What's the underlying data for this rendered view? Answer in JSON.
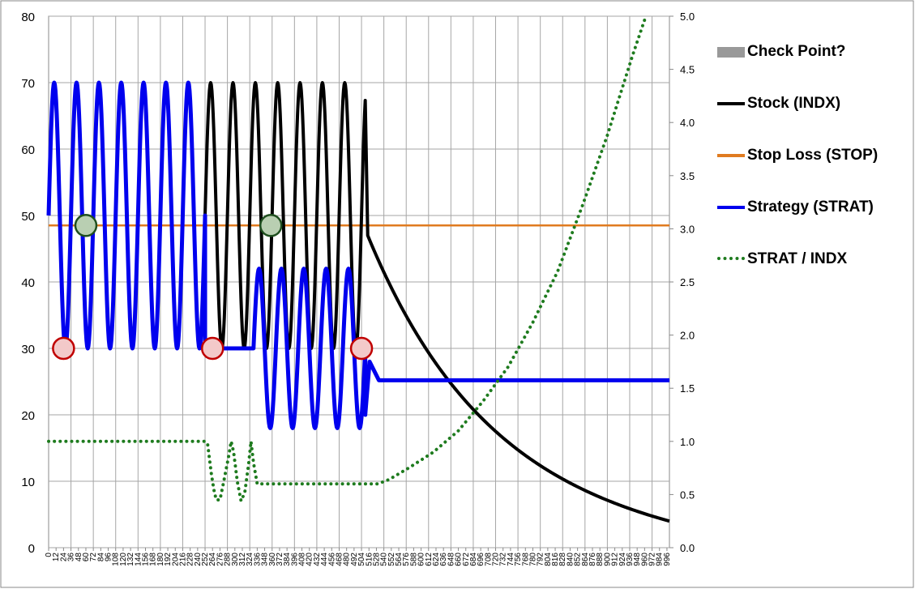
{
  "chart_data": {
    "type": "line",
    "title": "",
    "xlabel": "",
    "ylabel": "",
    "y2label": "",
    "xlim": [
      0,
      1000
    ],
    "ylim": [
      0,
      80
    ],
    "y2lim": [
      0,
      5
    ],
    "x_tick_step": 12,
    "y_ticks": [
      0,
      10,
      20,
      30,
      40,
      50,
      60,
      70,
      80
    ],
    "y2_ticks": [
      "0.0",
      "0.5",
      "1.0",
      "1.5",
      "2.0",
      "2.5",
      "3.0",
      "3.5",
      "4.0",
      "4.5",
      "5.0"
    ],
    "grid": true,
    "legend_position": "right",
    "series": [
      {
        "name": "Check Point?",
        "kind": "markers",
        "color": "#999999",
        "points": [
          {
            "x": 60,
            "y": 48.5,
            "style": "green"
          },
          {
            "x": 358,
            "y": 48.5,
            "style": "green"
          },
          {
            "x": 24,
            "y": 30,
            "style": "red"
          },
          {
            "x": 264,
            "y": 30,
            "style": "red"
          },
          {
            "x": 504,
            "y": 30,
            "style": "red"
          }
        ]
      },
      {
        "name": "Stock (INDX)",
        "color": "#000000",
        "axis": "left",
        "description": "oscillates 30-70 with period 36 until x=510, then decays from 47 to 4 by x=1000",
        "oscillation": {
          "x0": 0,
          "x1": 510,
          "min": 30,
          "max": 70,
          "start": 50,
          "period": 36
        },
        "decay": {
          "x0": 514,
          "x1": 1000,
          "y0": 47,
          "y1": 4,
          "rate": 0.0051
        }
      },
      {
        "name": "Stop Loss (STOP)",
        "color": "#E07B20",
        "axis": "left",
        "x": [
          0,
          1000
        ],
        "values": [
          48.5,
          48.5
        ]
      },
      {
        "name": "Strategy (STRAT)",
        "color": "#0000EE",
        "axis": "left",
        "segments": [
          {
            "kind": "osc",
            "x0": 0,
            "x1": 252,
            "min": 30,
            "max": 70,
            "start": 50,
            "period": 36
          },
          {
            "kind": "flat",
            "x0": 252,
            "x1": 330,
            "y": 30
          },
          {
            "kind": "osc",
            "x0": 330,
            "x1": 510,
            "min": 18,
            "max": 42,
            "start": 30,
            "period": 36
          },
          {
            "kind": "line",
            "points": [
              [
                510,
                20
              ],
              [
                517,
                28
              ],
              [
                532,
                25.2
              ]
            ]
          },
          {
            "kind": "flat",
            "x0": 532,
            "x1": 1000,
            "y": 25.2
          }
        ]
      },
      {
        "name": "STRAT / INDX",
        "color": "#1E7B1E",
        "axis": "right",
        "points": [
          [
            0,
            1.0
          ],
          [
            252,
            1.0
          ],
          [
            256,
            0.98
          ],
          [
            262,
            0.7
          ],
          [
            266,
            0.55
          ],
          [
            270,
            0.45
          ],
          [
            276,
            0.45
          ],
          [
            282,
            0.62
          ],
          [
            290,
            0.86
          ],
          [
            294,
            1.0
          ],
          [
            298,
            0.9
          ],
          [
            304,
            0.62
          ],
          [
            310,
            0.44
          ],
          [
            316,
            0.52
          ],
          [
            322,
            0.78
          ],
          [
            326,
            1.0
          ],
          [
            330,
            0.8
          ],
          [
            336,
            0.6
          ],
          [
            340,
            0.6
          ],
          [
            375,
            0.6
          ],
          [
            400,
            0.6
          ],
          [
            450,
            0.6
          ],
          [
            500,
            0.6
          ],
          [
            530,
            0.6
          ],
          [
            548,
            0.64
          ],
          [
            580,
            0.75
          ],
          [
            620,
            0.9
          ],
          [
            660,
            1.1
          ],
          [
            700,
            1.38
          ],
          [
            740,
            1.7
          ],
          [
            780,
            2.12
          ],
          [
            820,
            2.6
          ],
          [
            860,
            3.22
          ],
          [
            900,
            3.88
          ],
          [
            940,
            4.62
          ],
          [
            962,
            5.0
          ]
        ]
      }
    ]
  },
  "legend": {
    "items": [
      {
        "label": "Check Point?",
        "swatch": "box",
        "color": "#999999"
      },
      {
        "label": "Stock (INDX)",
        "swatch": "line",
        "color": "#000000"
      },
      {
        "label": "Stop Loss (STOP)",
        "swatch": "line",
        "color": "#E07B20"
      },
      {
        "label": "Strategy (STRAT)",
        "swatch": "line",
        "color": "#0000EE"
      },
      {
        "label": "STRAT / INDX",
        "swatch": "dot",
        "color": "#1E7B1E"
      }
    ]
  }
}
